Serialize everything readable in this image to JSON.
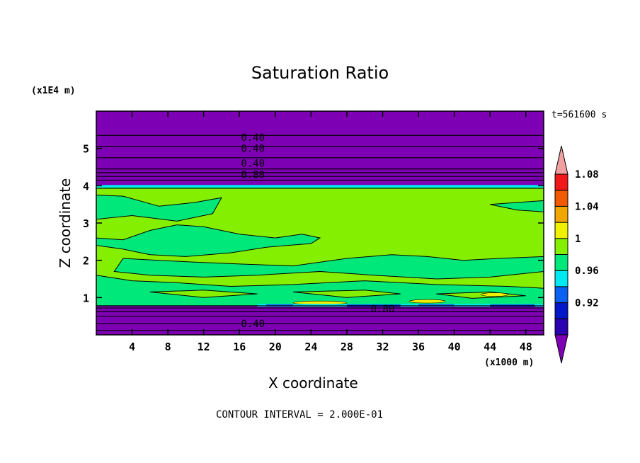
{
  "chart_data": {
    "type": "heatmap",
    "title": "Saturation Ratio",
    "xlabel": "X coordinate",
    "ylabel": "Z coordinate",
    "x_units": "(x1000 m)",
    "z_units": "(x1E4 m)",
    "time_label": "t=561600 s",
    "footer": "CONTOUR INTERVAL = 2.000E-01",
    "xlim": [
      0,
      50
    ],
    "ylim": [
      0,
      6
    ],
    "x_ticks": [
      4,
      8,
      12,
      16,
      20,
      24,
      28,
      32,
      36,
      40,
      44,
      48
    ],
    "y_ticks": [
      1,
      2,
      3,
      4,
      5
    ],
    "contour_labels": [
      {
        "text": "0.40",
        "x": 17.5,
        "z": 5.3
      },
      {
        "text": "0.40",
        "x": 17.5,
        "z": 5.0
      },
      {
        "text": "0.40",
        "x": 17.5,
        "z": 4.6
      },
      {
        "text": "0.80",
        "x": 17.5,
        "z": 4.3
      },
      {
        "text": "0.80",
        "x": 32.0,
        "z": 0.7
      },
      {
        "text": "0.40",
        "x": 17.5,
        "z": 0.3
      }
    ],
    "colorbar": {
      "levels": [
        0.92,
        0.96,
        1,
        1.04,
        1.08
      ],
      "colors": [
        "#7e00b4",
        "#2a00b0",
        "#0018c8",
        "#0a60f0",
        "#00e8f0",
        "#00e87a",
        "#84f000",
        "#f0f000",
        "#f0a800",
        "#f05a00",
        "#f01818",
        "#f0a0a0"
      ]
    },
    "colors": {
      "dry": "#7e00b4",
      "moist": "#84f000",
      "near_saturation": "#00e87a",
      "saturated_band": "#00e8f0",
      "supersaturated": "#f0f000"
    }
  }
}
